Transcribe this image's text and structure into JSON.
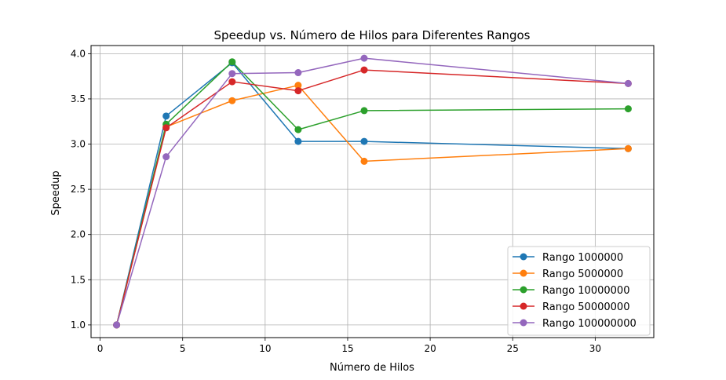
{
  "chart_data": {
    "type": "line",
    "title": "Speedup vs. Número de Hilos para Diferentes Rangos",
    "xlabel": "Número de Hilos",
    "ylabel": "Speedup",
    "xlim": [
      -0.55,
      33.55
    ],
    "ylim": [
      0.86,
      4.09
    ],
    "xticks": [
      0,
      5,
      10,
      15,
      20,
      25,
      30
    ],
    "yticks": [
      1.0,
      1.5,
      2.0,
      2.5,
      3.0,
      3.5,
      4.0
    ],
    "xtick_labels": [
      "0",
      "5",
      "10",
      "15",
      "20",
      "25",
      "30"
    ],
    "ytick_labels": [
      "1.0",
      "1.5",
      "2.0",
      "2.5",
      "3.0",
      "3.5",
      "4.0"
    ],
    "grid": true,
    "legend_position": "lower-right",
    "series": [
      {
        "name": "Rango 1000000",
        "color": "#1f77b4",
        "x": [
          1,
          4,
          8,
          12,
          16,
          32
        ],
        "y": [
          1.0,
          3.31,
          3.9,
          3.03,
          3.03,
          2.95
        ]
      },
      {
        "name": "Rango 5000000",
        "color": "#ff7f0e",
        "x": [
          1,
          4,
          8,
          12,
          16,
          32
        ],
        "y": [
          1.0,
          3.19,
          3.48,
          3.65,
          2.81,
          2.95
        ]
      },
      {
        "name": "Rango 10000000",
        "color": "#2ca02c",
        "x": [
          1,
          4,
          8,
          12,
          16,
          32
        ],
        "y": [
          1.0,
          3.22,
          3.91,
          3.16,
          3.37,
          3.39
        ]
      },
      {
        "name": "Rango 50000000",
        "color": "#d62728",
        "x": [
          1,
          4,
          8,
          12,
          16,
          32
        ],
        "y": [
          1.0,
          3.18,
          3.69,
          3.59,
          3.82,
          3.67
        ]
      },
      {
        "name": "Rango 100000000",
        "color": "#9467bd",
        "x": [
          1,
          4,
          8,
          12,
          16,
          32
        ],
        "y": [
          1.0,
          2.86,
          3.78,
          3.79,
          3.95,
          3.67
        ]
      }
    ]
  }
}
